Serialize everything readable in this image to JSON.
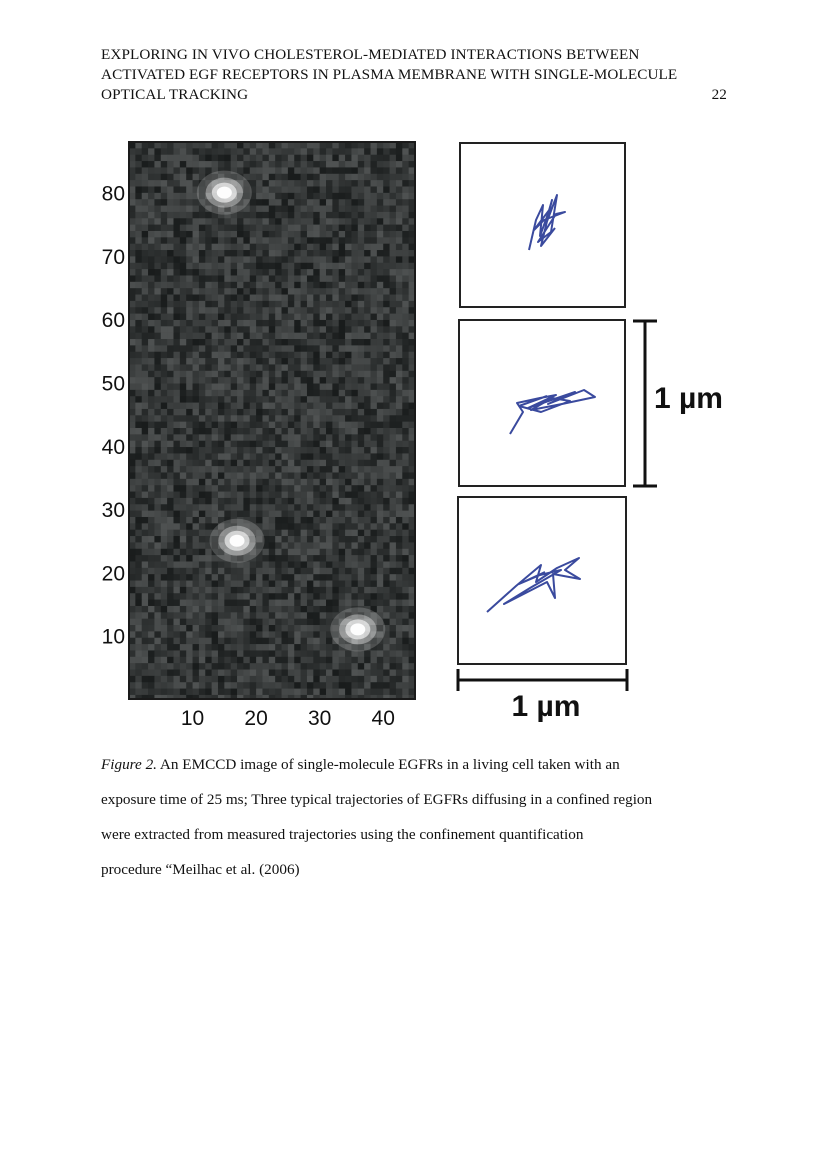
{
  "running_head": {
    "lines": [
      "EXPLORING IN VIVO CHOLESTEROL-MEDIATED INTERACTIONS BETWEEN",
      "ACTIVATED EGF RECEPTORS IN PLASMA MEMBRANE WITH SINGLE-MOLECULE",
      "OPTICAL TRACKING"
    ],
    "page_number": "22"
  },
  "figure": {
    "image": {
      "y_ticks": [
        "80",
        "70",
        "60",
        "50",
        "40",
        "30",
        "20",
        "10"
      ],
      "x_ticks": [
        "10",
        "20",
        "30",
        "40"
      ],
      "bright_spots": [
        {
          "x": 15,
          "y": 80
        },
        {
          "x": 17,
          "y": 25
        },
        {
          "x": 36,
          "y": 11
        }
      ]
    },
    "scale_bar_vertical_label": "1 µm",
    "scale_bar_horizontal_label": "1 µm",
    "trajectory_color": "#3a4a9e"
  },
  "caption": {
    "label": "Figure 2.",
    "lines": [
      " An EMCCD image of single-molecule EGFRs in a living cell taken with an",
      "exposure time of 25 ms; Three typical trajectories of EGFRs diffusing in a confined region",
      "were extracted from measured trajectories using the confinement quantification",
      "procedure “Meilhac et al. (2006)"
    ]
  }
}
